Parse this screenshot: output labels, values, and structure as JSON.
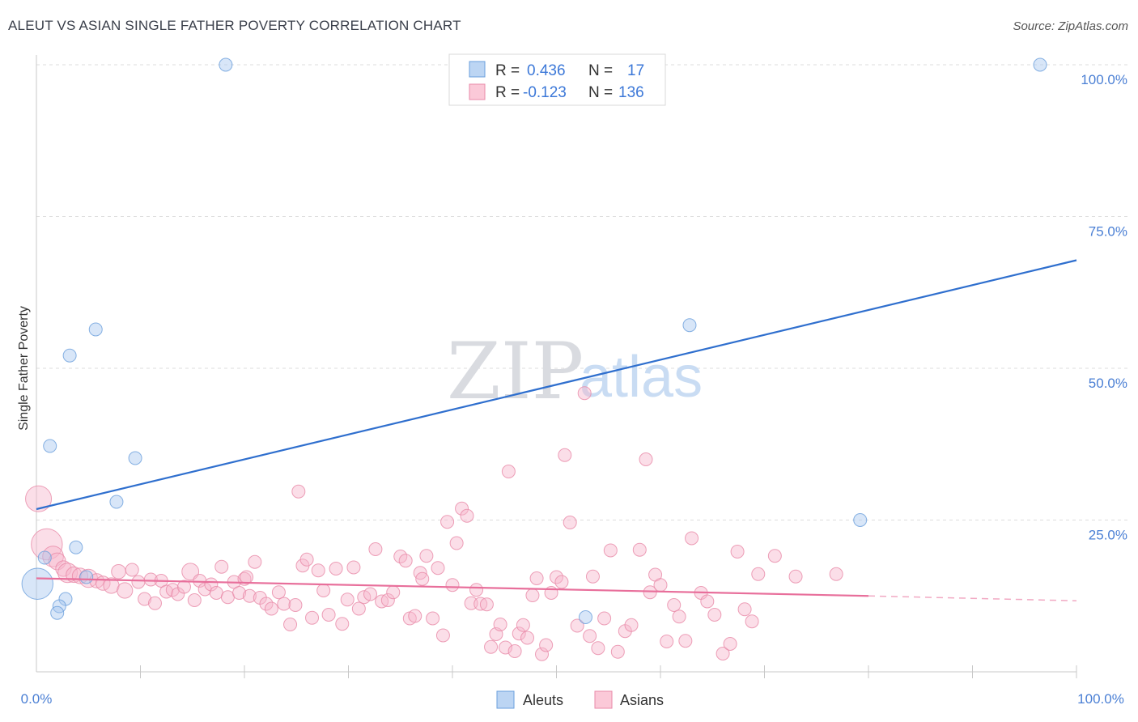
{
  "title": "ALEUT VS ASIAN SINGLE FATHER POVERTY CORRELATION CHART",
  "source": "Source: ZipAtlas.com",
  "watermark": {
    "zip": "ZIP",
    "atlas": "atlas"
  },
  "stats": {
    "r_label": "R =",
    "n_label": "N =",
    "aleuts": {
      "r": "0.436",
      "n": "17",
      "color": "#a8c8f0"
    },
    "asians": {
      "r": "-0.123",
      "n": "136",
      "color": "#f7b6cb"
    }
  },
  "legend": {
    "aleuts": "Aleuts",
    "asians": "Asians"
  },
  "chart_data": {
    "type": "scatter",
    "title": "ALEUT VS ASIAN SINGLE FATHER POVERTY CORRELATION CHART",
    "xlabel": "",
    "ylabel": "Single Father Poverty",
    "xlim": [
      0,
      100
    ],
    "ylim": [
      0,
      100
    ],
    "x_tick_labels": [
      "0.0%",
      "100.0%"
    ],
    "y_tick_labels": [
      "25.0%",
      "50.0%",
      "75.0%",
      "100.0%"
    ],
    "y_ticks": [
      25,
      50,
      75,
      100
    ],
    "grid": true,
    "legend_position": "bottom-center",
    "series": [
      {
        "name": "Aleuts",
        "color": "#a8c8f0",
        "stroke": "#6a9fdc",
        "trend_color": "#2f6fce",
        "trend": {
          "x": [
            0,
            100
          ],
          "y": [
            26.8,
            67.8
          ]
        },
        "points": [
          [
            18.2,
            100,
            1
          ],
          [
            96.5,
            100,
            1
          ],
          [
            5.7,
            56.4,
            1
          ],
          [
            3.2,
            52.1,
            1
          ],
          [
            62.8,
            57.1,
            1
          ],
          [
            1.3,
            37.2,
            1
          ],
          [
            9.5,
            35.2,
            1
          ],
          [
            7.7,
            28.0,
            1
          ],
          [
            79.2,
            25.0,
            1
          ],
          [
            3.8,
            20.5,
            1
          ],
          [
            0.8,
            18.8,
            1
          ],
          [
            4.8,
            15.6,
            1
          ],
          [
            0.1,
            14.5,
            2.4
          ],
          [
            2.8,
            12.0,
            1
          ],
          [
            2.2,
            10.8,
            1
          ],
          [
            2.0,
            9.7,
            1
          ],
          [
            52.8,
            9.0,
            1
          ]
        ]
      },
      {
        "name": "Asians",
        "color": "#f7b6cb",
        "stroke": "#e88aa8",
        "trend_color": "#e86f9b",
        "trend": {
          "x": [
            0,
            80
          ],
          "y": [
            15.4,
            12.5
          ]
        },
        "trend_dashed": {
          "x": [
            80,
            100
          ],
          "y": [
            12.5,
            11.7
          ]
        },
        "points": [
          [
            0.2,
            28.5,
            2.0
          ],
          [
            1.0,
            21.0,
            2.4
          ],
          [
            1.6,
            19.0,
            1.6
          ],
          [
            2.0,
            18.2,
            1.3
          ],
          [
            2.6,
            17.0,
            1.2
          ],
          [
            3.0,
            16.3,
            1.5
          ],
          [
            3.6,
            16.0,
            1.2
          ],
          [
            4.2,
            15.8,
            1.2
          ],
          [
            5.0,
            15.4,
            1.4
          ],
          [
            5.8,
            15.0,
            1.1
          ],
          [
            6.4,
            14.6,
            1.1
          ],
          [
            7.2,
            14.2,
            1.2
          ],
          [
            7.9,
            16.5,
            1.1
          ],
          [
            8.5,
            13.4,
            1.2
          ],
          [
            9.2,
            16.8,
            1.0
          ],
          [
            9.8,
            14.8,
            1.0
          ],
          [
            10.4,
            12.0,
            1.0
          ],
          [
            11.0,
            15.2,
            1.0
          ],
          [
            11.4,
            11.3,
            1.0
          ],
          [
            12.0,
            15.0,
            1.0
          ],
          [
            12.5,
            13.2,
            1.0
          ],
          [
            13.1,
            13.5,
            1.0
          ],
          [
            13.6,
            12.8,
            1.0
          ],
          [
            14.2,
            14.0,
            1.0
          ],
          [
            14.8,
            16.5,
            1.3
          ],
          [
            15.2,
            11.8,
            1.0
          ],
          [
            15.7,
            15.0,
            1.0
          ],
          [
            16.2,
            13.6,
            1.0
          ],
          [
            16.8,
            14.4,
            1.0
          ],
          [
            17.3,
            13.0,
            1.0
          ],
          [
            17.8,
            17.3,
            1.0
          ],
          [
            18.4,
            12.3,
            1.0
          ],
          [
            19.0,
            14.8,
            1.0
          ],
          [
            19.5,
            13.0,
            1.0
          ],
          [
            20.0,
            15.3,
            1.0
          ],
          [
            20.5,
            12.5,
            1.0
          ],
          [
            21.0,
            18.1,
            1.0
          ],
          [
            21.5,
            12.2,
            1.0
          ],
          [
            22.1,
            11.2,
            1.0
          ],
          [
            22.6,
            10.4,
            1.0
          ],
          [
            23.3,
            13.1,
            1.0
          ],
          [
            23.8,
            11.2,
            1.0
          ],
          [
            24.4,
            7.8,
            1.0
          ],
          [
            24.9,
            11.0,
            1.0
          ],
          [
            25.2,
            29.7,
            1.0
          ],
          [
            25.6,
            17.5,
            1.0
          ],
          [
            26.0,
            18.5,
            1.0
          ],
          [
            26.5,
            8.9,
            1.0
          ],
          [
            27.1,
            16.7,
            1.0
          ],
          [
            27.6,
            13.4,
            1.0
          ],
          [
            28.1,
            9.4,
            1.0
          ],
          [
            28.8,
            17.0,
            1.0
          ],
          [
            29.4,
            7.9,
            1.0
          ],
          [
            29.9,
            11.9,
            1.0
          ],
          [
            30.5,
            17.2,
            1.0
          ],
          [
            31.0,
            10.4,
            1.0
          ],
          [
            31.5,
            12.3,
            1.0
          ],
          [
            32.1,
            12.8,
            1.0
          ],
          [
            32.6,
            20.2,
            1.0
          ],
          [
            33.2,
            11.6,
            1.0
          ],
          [
            33.8,
            11.8,
            1.0
          ],
          [
            34.3,
            13.1,
            1.0
          ],
          [
            35.0,
            19.0,
            1.0
          ],
          [
            35.5,
            18.3,
            1.0
          ],
          [
            35.9,
            8.8,
            1.0
          ],
          [
            36.4,
            9.2,
            1.0
          ],
          [
            36.9,
            16.3,
            1.0
          ],
          [
            37.5,
            19.1,
            1.0
          ],
          [
            38.1,
            8.8,
            1.0
          ],
          [
            38.6,
            17.1,
            1.0
          ],
          [
            39.1,
            6.0,
            1.0
          ],
          [
            39.5,
            24.7,
            1.0
          ],
          [
            40.0,
            14.3,
            1.0
          ],
          [
            40.4,
            21.2,
            1.0
          ],
          [
            40.9,
            26.9,
            1.0
          ],
          [
            41.4,
            25.7,
            1.0
          ],
          [
            41.8,
            11.3,
            1.0
          ],
          [
            42.3,
            13.5,
            1.0
          ],
          [
            42.7,
            11.2,
            1.0
          ],
          [
            43.3,
            11.1,
            1.0
          ],
          [
            43.7,
            4.1,
            1.0
          ],
          [
            44.2,
            6.2,
            1.0
          ],
          [
            44.6,
            7.8,
            1.0
          ],
          [
            45.1,
            4.0,
            1.0
          ],
          [
            45.4,
            33.0,
            1.0
          ],
          [
            46.0,
            3.4,
            1.0
          ],
          [
            46.4,
            6.3,
            1.0
          ],
          [
            46.8,
            7.7,
            1.0
          ],
          [
            47.2,
            5.6,
            1.0
          ],
          [
            47.7,
            12.6,
            1.0
          ],
          [
            48.1,
            15.4,
            1.0
          ],
          [
            48.6,
            2.9,
            1.0
          ],
          [
            49.0,
            4.4,
            1.0
          ],
          [
            49.5,
            13.0,
            1.0
          ],
          [
            50.0,
            15.6,
            1.0
          ],
          [
            50.5,
            14.8,
            1.0
          ],
          [
            50.8,
            35.7,
            1.0
          ],
          [
            51.3,
            24.6,
            1.0
          ],
          [
            52.0,
            7.6,
            1.0
          ],
          [
            52.7,
            45.9,
            1.0
          ],
          [
            53.2,
            5.9,
            1.0
          ],
          [
            53.5,
            15.7,
            1.0
          ],
          [
            54.0,
            3.9,
            1.0
          ],
          [
            54.6,
            8.8,
            1.0
          ],
          [
            55.2,
            20.0,
            1.0
          ],
          [
            55.9,
            3.3,
            1.0
          ],
          [
            56.6,
            6.7,
            1.0
          ],
          [
            57.2,
            7.7,
            1.0
          ],
          [
            58.0,
            20.1,
            1.0
          ],
          [
            58.6,
            35.0,
            1.0
          ],
          [
            59.0,
            13.1,
            1.0
          ],
          [
            59.5,
            16.0,
            1.0
          ],
          [
            60.0,
            14.3,
            1.0
          ],
          [
            60.6,
            5.0,
            1.0
          ],
          [
            61.3,
            11.0,
            1.0
          ],
          [
            61.8,
            9.1,
            1.0
          ],
          [
            62.4,
            5.1,
            1.0
          ],
          [
            63.0,
            22.0,
            1.0
          ],
          [
            63.9,
            13.0,
            1.0
          ],
          [
            64.5,
            11.6,
            1.0
          ],
          [
            65.2,
            9.4,
            1.0
          ],
          [
            66.0,
            3.0,
            1.0
          ],
          [
            66.7,
            4.6,
            1.0
          ],
          [
            67.4,
            19.8,
            1.0
          ],
          [
            68.1,
            10.3,
            1.0
          ],
          [
            68.8,
            8.3,
            1.0
          ],
          [
            69.4,
            16.1,
            1.0
          ],
          [
            71.0,
            19.1,
            1.0
          ],
          [
            73.0,
            15.7,
            1.0
          ],
          [
            76.9,
            16.1,
            1.0
          ],
          [
            37.1,
            15.3,
            1.0
          ],
          [
            20.2,
            15.6,
            1.0
          ]
        ]
      }
    ]
  }
}
